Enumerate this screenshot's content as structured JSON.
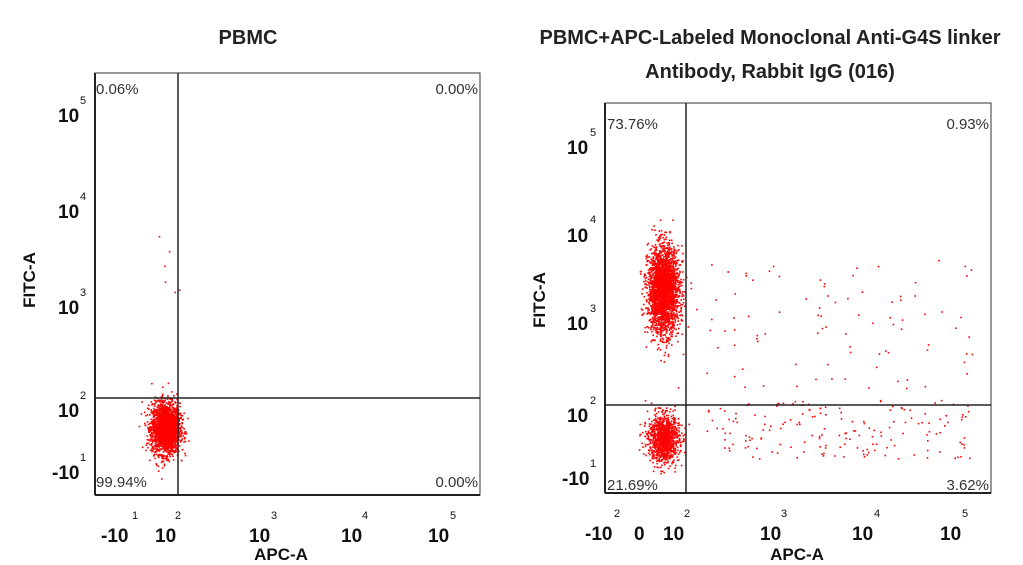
{
  "chart_data": [
    {
      "type": "scatter",
      "title": "PBMC",
      "title_lines": [
        "PBMC"
      ],
      "xlabel": "APC-A",
      "ylabel": "FITC-A",
      "x_ticks": [
        {
          "base": "-10",
          "exp": "1"
        },
        {
          "base": "10",
          "exp": "2"
        },
        {
          "base": "10",
          "exp": "3"
        },
        {
          "base": "10",
          "exp": "4"
        },
        {
          "base": "10",
          "exp": "5"
        }
      ],
      "y_ticks": [
        {
          "base": "-10",
          "exp": "1"
        },
        {
          "base": "10",
          "exp": "2"
        },
        {
          "base": "10",
          "exp": "3"
        },
        {
          "base": "10",
          "exp": "4"
        },
        {
          "base": "10",
          "exp": "5"
        }
      ],
      "quadrants": {
        "upper_left": "0.06%",
        "upper_right": "0.00%",
        "lower_left": "99.94%",
        "lower_right": "0.00%"
      },
      "point_color": "#ff0000",
      "populations": [
        {
          "name": "",
          "x_log": 0.8,
          "y_log": 1.35,
          "n": 2400,
          "sx": 0.1,
          "sy": 0.14
        }
      ]
    },
    {
      "type": "scatter",
      "title": "PBMC+APC-Labeled Monoclonal Anti-G4S linker Antibody, Rabbit IgG (016)",
      "title_lines": [
        "PBMC+APC-Labeled Monoclonal Anti-G4S linker",
        "Antibody, Rabbit IgG (016)"
      ],
      "xlabel": "APC-A",
      "ylabel": "FITC-A",
      "x_ticks": [
        {
          "base": "-10",
          "exp": "2"
        },
        {
          "base": "0",
          "exp": ""
        },
        {
          "base": "10",
          "exp": "2"
        },
        {
          "base": "10",
          "exp": "3"
        },
        {
          "base": "10",
          "exp": "4"
        },
        {
          "base": "10",
          "exp": "5"
        }
      ],
      "y_ticks": [
        {
          "base": "-10",
          "exp": "1"
        },
        {
          "base": "10",
          "exp": "2"
        },
        {
          "base": "10",
          "exp": "3"
        },
        {
          "base": "10",
          "exp": "4"
        },
        {
          "base": "10",
          "exp": "5"
        }
      ],
      "quadrants": {
        "upper_left": "73.76%",
        "upper_right": "0.93%",
        "lower_left": "21.69%",
        "lower_right": "3.62%"
      },
      "point_color": "#ff0000",
      "populations": [
        {
          "name": "",
          "x_log": 0.4,
          "y_log": 3.1,
          "n": 2600,
          "sx": 0.12,
          "sy": 0.25
        },
        {
          "name": "",
          "x_log": 0.4,
          "y_log": 1.35,
          "n": 1100,
          "sx": 0.12,
          "sy": 0.14
        }
      ]
    }
  ]
}
